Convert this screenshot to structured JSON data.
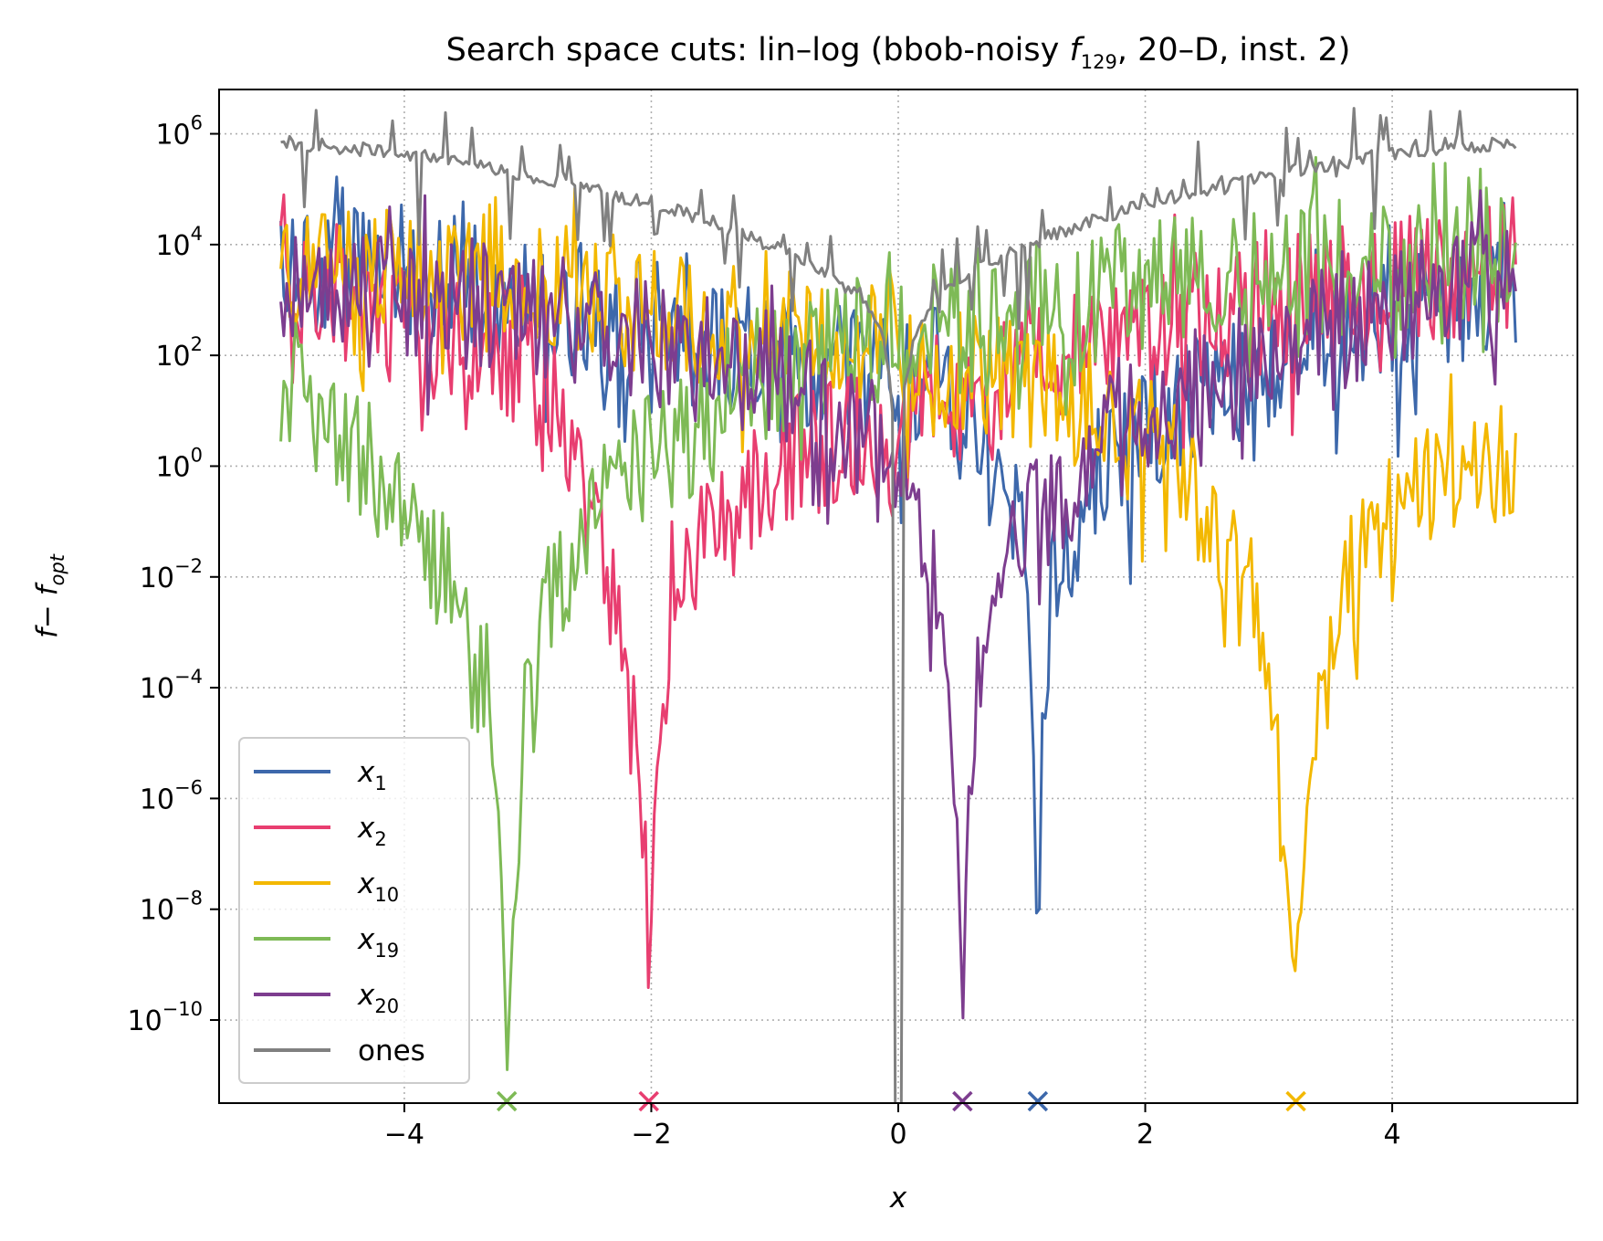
{
  "chart_data": {
    "type": "line",
    "title": {
      "prefix": "Search space cuts: lin–log (bbob-noisy ",
      "func_main": "f",
      "func_sub": "129",
      "suffix": ", 20–D, inst. 2)"
    },
    "xlabel": "x",
    "ylabel": {
      "main1": "f",
      "mid": "− ",
      "main2": "f",
      "sub": "opt"
    },
    "xlim": [
      -5.5,
      5.5
    ],
    "ylim_log10": [
      -11.5,
      6.8
    ],
    "y_scale": "log",
    "grid": true,
    "legend_position": "lower-left",
    "x_ticks": [
      -4,
      -2,
      0,
      2,
      4
    ],
    "x_tick_labels": [
      "−4",
      "−2",
      "0",
      "2",
      "4"
    ],
    "y_ticks_log10": [
      6,
      4,
      2,
      0,
      -2,
      -4,
      -6,
      -8,
      -10
    ],
    "y_tick_labels": [
      {
        "base": "10",
        "exp": "6"
      },
      {
        "base": "10",
        "exp": "4"
      },
      {
        "base": "10",
        "exp": "2"
      },
      {
        "base": "10",
        "exp": "0"
      },
      {
        "base": "10",
        "exp": "−2"
      },
      {
        "base": "10",
        "exp": "−4"
      },
      {
        "base": "10",
        "exp": "−6"
      },
      {
        "base": "10",
        "exp": "−8"
      },
      {
        "base": "10",
        "exp": "−10"
      }
    ],
    "series": [
      {
        "name": "x",
        "sub": "1",
        "color": "#3d68ab",
        "optimum_x": 1.13,
        "curve": {
          "x": [
            -5,
            -4,
            -3,
            -2,
            -1,
            0,
            0.6,
            0.9,
            1.05,
            1.1,
            1.13,
            1.16,
            1.25,
            1.5,
            2,
            3,
            4,
            5
          ],
          "y": [
            3,
            3.2,
            2.6,
            2.1,
            1.6,
            1.1,
            0.5,
            -0.6,
            -2.8,
            -6,
            -9.1,
            -5.5,
            -2.5,
            -1.2,
            0.4,
            1.5,
            2.3,
            2.6
          ]
        }
      },
      {
        "name": "x",
        "sub": "2",
        "color": "#e83e70",
        "optimum_x": -2.02,
        "curve": {
          "x": [
            -5,
            -4,
            -3,
            -2.6,
            -2.3,
            -2.15,
            -2.05,
            -2.02,
            -1.98,
            -1.9,
            -1.7,
            -1,
            0,
            1,
            2,
            3,
            4,
            5
          ],
          "y": [
            3,
            2.5,
            1.5,
            -0.6,
            -2.8,
            -4.9,
            -7.5,
            -9.4,
            -6.5,
            -4.1,
            -2.2,
            -0.4,
            0.6,
            1.3,
            2,
            2.6,
            3,
            3.2
          ]
        }
      },
      {
        "name": "x",
        "sub": "10",
        "color": "#f3b800",
        "optimum_x": 3.22,
        "curve": {
          "x": [
            -5,
            -4,
            -3,
            -2,
            -1,
            0,
            1,
            2,
            2.5,
            2.8,
            3.0,
            3.15,
            3.22,
            3.3,
            3.5,
            3.8,
            4.2,
            5
          ],
          "y": [
            3.2,
            3.2,
            2.9,
            2.5,
            2.1,
            1.7,
            1.2,
            0.3,
            -1.3,
            -2.6,
            -4.3,
            -7.8,
            -9.3,
            -6.6,
            -3.6,
            -1.8,
            -0.7,
            -0.7
          ]
        }
      },
      {
        "name": "x",
        "sub": "19",
        "color": "#7eba56",
        "optimum_x": -3.17,
        "curve": {
          "x": [
            -5,
            -4.6,
            -4.2,
            -3.8,
            -3.5,
            -3.3,
            -3.2,
            -3.17,
            -3.13,
            -3.0,
            -2.8,
            -2.5,
            -2,
            -1,
            0,
            1,
            2,
            3,
            4,
            5
          ],
          "y": [
            1.2,
            0.5,
            -0.6,
            -1.8,
            -2.8,
            -4.6,
            -7.8,
            -11.6,
            -9,
            -4.2,
            -2.6,
            -1.3,
            -0.2,
            1.3,
            2.1,
            2.6,
            2.9,
            3.1,
            3.2,
            3.3
          ]
        }
      },
      {
        "name": "x",
        "sub": "20",
        "color": "#7d3d8f",
        "optimum_x": 0.52,
        "curve": {
          "x": [
            -5,
            -4,
            -3,
            -2,
            -1,
            -0.5,
            0,
            0.25,
            0.4,
            0.48,
            0.52,
            0.56,
            0.7,
            1,
            1.5,
            2,
            3,
            4,
            5
          ],
          "y": [
            3.1,
            2.8,
            2.4,
            1.9,
            1.2,
            0.5,
            -0.5,
            -2.1,
            -4.2,
            -7,
            -10.7,
            -6.4,
            -3.3,
            -1.6,
            -0.3,
            0.7,
            1.8,
            2.5,
            2.8
          ]
        }
      },
      {
        "name": "ones",
        "sub": "",
        "color": "#808080",
        "optimum_x": null,
        "curve": {
          "x": [
            -5,
            -4,
            -3,
            -2,
            -1.5,
            -1,
            -0.6,
            -0.3,
            -0.12,
            -0.05,
            -0.02,
            0,
            0.02,
            0.05,
            0.12,
            0.3,
            0.6,
            1,
            1.5,
            2,
            3,
            4,
            5
          ],
          "y": [
            5.85,
            5.65,
            5.25,
            4.75,
            4.4,
            3.95,
            3.55,
            3.0,
            2.3,
            1.2,
            -1.5,
            -12,
            -1.5,
            1.2,
            2.3,
            3.0,
            3.55,
            3.95,
            4.4,
            4.75,
            5.25,
            5.65,
            5.85
          ]
        }
      }
    ]
  }
}
